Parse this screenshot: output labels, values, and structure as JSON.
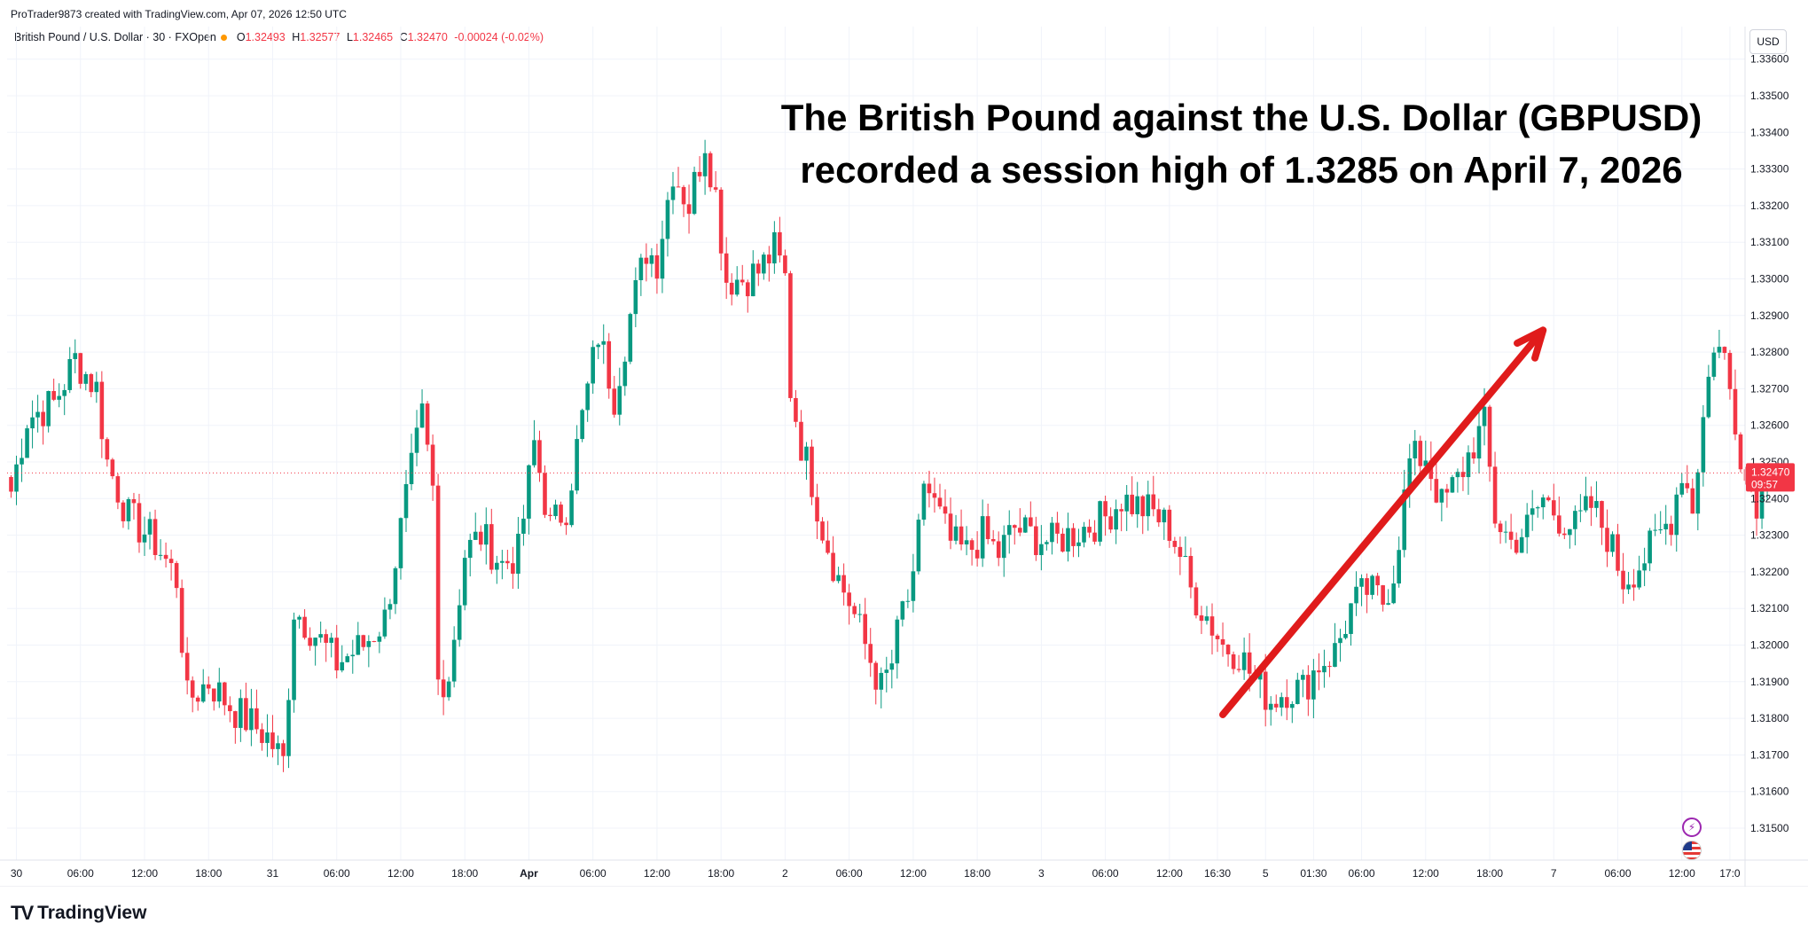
{
  "header": {
    "created_by": "ProTrader9873 created with TradingView.com, Apr 07, 2026 12:50 UTC"
  },
  "legend": {
    "symbol": "British Pound / U.S. Dollar · 30 · FXOpen",
    "open_label": "O",
    "open": "1.32493",
    "high_label": "H",
    "high": "1.32577",
    "low_label": "L",
    "low": "1.32465",
    "close_label": "C",
    "close": "1.32470",
    "change": "-0.00024 (-0.02%)"
  },
  "currency_button": "USD",
  "footer": {
    "brand": "TradingView",
    "logo": "TV"
  },
  "colors": {
    "up": "#089981",
    "down": "#f23645",
    "arrow": "#e01b1b",
    "grid": "#f0f3fa"
  },
  "chart_data": {
    "type": "candlestick",
    "title": "The British Pound against the U.S. Dollar (GBPUSD) recorded a session high of 1.3285 on April 7, 2026",
    "title_lines": [
      "The British Pound against the U.S. Dollar (GBPUSD)",
      "recorded a session high of 1.3285 on April 7, 2026"
    ],
    "ylim": [
      1.3145,
      1.3365
    ],
    "y_ticks": [
      "1.31500",
      "1.31600",
      "1.31700",
      "1.31800",
      "1.31900",
      "1.32000",
      "1.32100",
      "1.32200",
      "1.32300",
      "1.32400",
      "1.32500",
      "1.32600",
      "1.32700",
      "1.32800",
      "1.32900",
      "1.33000",
      "1.33100",
      "1.33200",
      "1.33300",
      "1.33400",
      "1.33500",
      "1.33600"
    ],
    "x_ticks": [
      {
        "label": "30",
        "i": 1
      },
      {
        "label": "06:00",
        "i": 13
      },
      {
        "label": "12:00",
        "i": 25
      },
      {
        "label": "18:00",
        "i": 37
      },
      {
        "label": "31",
        "i": 49
      },
      {
        "label": "06:00",
        "i": 61
      },
      {
        "label": "12:00",
        "i": 73
      },
      {
        "label": "18:00",
        "i": 85
      },
      {
        "label": "Apr",
        "i": 97
      },
      {
        "label": "06:00",
        "i": 109
      },
      {
        "label": "12:00",
        "i": 121
      },
      {
        "label": "18:00",
        "i": 133
      },
      {
        "label": "2",
        "i": 145
      },
      {
        "label": "06:00",
        "i": 157
      },
      {
        "label": "12:00",
        "i": 169
      },
      {
        "label": "18:00",
        "i": 181
      },
      {
        "label": "3",
        "i": 193
      },
      {
        "label": "06:00",
        "i": 205
      },
      {
        "label": "12:00",
        "i": 217
      },
      {
        "label": "16:30",
        "i": 226
      },
      {
        "label": "5",
        "i": 235
      },
      {
        "label": "01:30",
        "i": 244
      },
      {
        "label": "06:00",
        "i": 253
      },
      {
        "label": "12:00",
        "i": 265
      },
      {
        "label": "18:00",
        "i": 277
      },
      {
        "label": "7",
        "i": 289
      },
      {
        "label": "06:00",
        "i": 301
      },
      {
        "label": "12:00",
        "i": 313
      },
      {
        "label": "17:0",
        "i": 322
      }
    ],
    "last_price": "1.32470",
    "countdown": "09:57",
    "current_price_value": 1.3247,
    "keypoints": [
      {
        "i": 0,
        "c": 1.3242
      },
      {
        "i": 3,
        "c": 1.3262
      },
      {
        "i": 8,
        "c": 1.3266
      },
      {
        "i": 12,
        "c": 1.3278
      },
      {
        "i": 16,
        "c": 1.327
      },
      {
        "i": 18,
        "c": 1.325
      },
      {
        "i": 22,
        "c": 1.3235
      },
      {
        "i": 27,
        "c": 1.3228
      },
      {
        "i": 31,
        "c": 1.3218
      },
      {
        "i": 33,
        "c": 1.3185
      },
      {
        "i": 37,
        "c": 1.319
      },
      {
        "i": 42,
        "c": 1.3182
      },
      {
        "i": 48,
        "c": 1.3175
      },
      {
        "i": 51,
        "c": 1.3168
      },
      {
        "i": 53,
        "c": 1.321
      },
      {
        "i": 57,
        "c": 1.3203
      },
      {
        "i": 61,
        "c": 1.3195
      },
      {
        "i": 66,
        "c": 1.32
      },
      {
        "i": 70,
        "c": 1.3207
      },
      {
        "i": 74,
        "c": 1.324
      },
      {
        "i": 77,
        "c": 1.3262
      },
      {
        "i": 79,
        "c": 1.3242
      },
      {
        "i": 80,
        "c": 1.319
      },
      {
        "i": 82,
        "c": 1.3192
      },
      {
        "i": 85,
        "c": 1.3225
      },
      {
        "i": 88,
        "c": 1.323
      },
      {
        "i": 92,
        "c": 1.3222
      },
      {
        "i": 95,
        "c": 1.3225
      },
      {
        "i": 98,
        "c": 1.3255
      },
      {
        "i": 101,
        "c": 1.3232
      },
      {
        "i": 104,
        "c": 1.3238
      },
      {
        "i": 107,
        "c": 1.3262
      },
      {
        "i": 110,
        "c": 1.3285
      },
      {
        "i": 113,
        "c": 1.3268
      },
      {
        "i": 116,
        "c": 1.329
      },
      {
        "i": 119,
        "c": 1.3308
      },
      {
        "i": 121,
        "c": 1.3305
      },
      {
        "i": 124,
        "c": 1.333
      },
      {
        "i": 127,
        "c": 1.332
      },
      {
        "i": 130,
        "c": 1.3338
      },
      {
        "i": 132,
        "c": 1.3323
      },
      {
        "i": 134,
        "c": 1.33
      },
      {
        "i": 137,
        "c": 1.33
      },
      {
        "i": 140,
        "c": 1.3302
      },
      {
        "i": 143,
        "c": 1.3308
      },
      {
        "i": 145,
        "c": 1.33
      },
      {
        "i": 146,
        "c": 1.327
      },
      {
        "i": 148,
        "c": 1.3255
      },
      {
        "i": 150,
        "c": 1.3245
      },
      {
        "i": 152,
        "c": 1.3232
      },
      {
        "i": 155,
        "c": 1.3218
      },
      {
        "i": 157,
        "c": 1.3212
      },
      {
        "i": 160,
        "c": 1.32
      },
      {
        "i": 163,
        "c": 1.3188
      },
      {
        "i": 165,
        "c": 1.3195
      },
      {
        "i": 167,
        "c": 1.321
      },
      {
        "i": 169,
        "c": 1.3215
      },
      {
        "i": 171,
        "c": 1.3245
      },
      {
        "i": 173,
        "c": 1.3238
      },
      {
        "i": 176,
        "c": 1.3228
      },
      {
        "i": 179,
        "c": 1.3225
      },
      {
        "i": 182,
        "c": 1.323
      },
      {
        "i": 185,
        "c": 1.3225
      },
      {
        "i": 188,
        "c": 1.3232
      },
      {
        "i": 191,
        "c": 1.323
      },
      {
        "i": 195,
        "c": 1.3228
      },
      {
        "i": 198,
        "c": 1.323
      },
      {
        "i": 201,
        "c": 1.3232
      },
      {
        "i": 205,
        "c": 1.3235
      },
      {
        "i": 208,
        "c": 1.324
      },
      {
        "i": 211,
        "c": 1.3238
      },
      {
        "i": 214,
        "c": 1.3236
      },
      {
        "i": 217,
        "c": 1.3232
      },
      {
        "i": 219,
        "c": 1.3225
      },
      {
        "i": 221,
        "c": 1.3215
      },
      {
        "i": 224,
        "c": 1.3208
      },
      {
        "i": 227,
        "c": 1.32
      },
      {
        "i": 230,
        "c": 1.3198
      },
      {
        "i": 233,
        "c": 1.319
      },
      {
        "i": 236,
        "c": 1.3185
      },
      {
        "i": 239,
        "c": 1.3188
      },
      {
        "i": 242,
        "c": 1.3188
      },
      {
        "i": 245,
        "c": 1.3195
      },
      {
        "i": 248,
        "c": 1.3198
      },
      {
        "i": 251,
        "c": 1.321
      },
      {
        "i": 254,
        "c": 1.3215
      },
      {
        "i": 257,
        "c": 1.3212
      },
      {
        "i": 259,
        "c": 1.322
      },
      {
        "i": 262,
        "c": 1.325
      },
      {
        "i": 265,
        "c": 1.3252
      },
      {
        "i": 268,
        "c": 1.3238
      },
      {
        "i": 271,
        "c": 1.3245
      },
      {
        "i": 274,
        "c": 1.3255
      },
      {
        "i": 276,
        "c": 1.326
      },
      {
        "i": 278,
        "c": 1.3235
      },
      {
        "i": 281,
        "c": 1.3228
      },
      {
        "i": 284,
        "c": 1.3232
      },
      {
        "i": 287,
        "c": 1.324
      },
      {
        "i": 290,
        "c": 1.3235
      },
      {
        "i": 293,
        "c": 1.3232
      },
      {
        "i": 296,
        "c": 1.3238
      },
      {
        "i": 299,
        "c": 1.323
      },
      {
        "i": 302,
        "c": 1.3218
      },
      {
        "i": 305,
        "c": 1.3222
      },
      {
        "i": 308,
        "c": 1.3228
      },
      {
        "i": 311,
        "c": 1.3235
      },
      {
        "i": 313,
        "c": 1.3248
      },
      {
        "i": 315,
        "c": 1.3238
      },
      {
        "i": 317,
        "c": 1.3262
      },
      {
        "i": 319,
        "c": 1.3283
      },
      {
        "i": 321,
        "c": 1.3278
      },
      {
        "i": 323,
        "c": 1.3262
      },
      {
        "i": 325,
        "c": 1.3245
      },
      {
        "i": 327,
        "c": 1.324
      },
      {
        "i": 329,
        "c": 1.3247
      }
    ],
    "annotation_arrow": {
      "from": {
        "i": 227,
        "v": 1.3181
      },
      "to": {
        "i": 287,
        "v": 1.3286
      }
    }
  }
}
